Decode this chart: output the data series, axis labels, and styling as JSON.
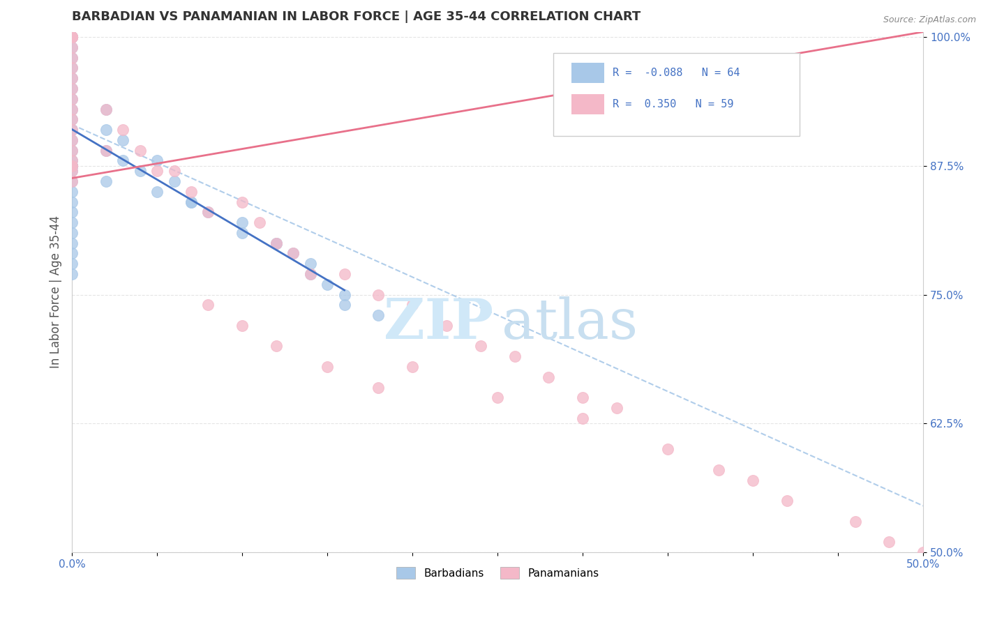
{
  "title": "BARBADIAN VS PANAMANIAN IN LABOR FORCE | AGE 35-44 CORRELATION CHART",
  "source_text": "Source: ZipAtlas.com",
  "ylabel": "In Labor Force | Age 35-44",
  "xlim": [
    0.0,
    0.5
  ],
  "ylim": [
    0.5,
    1.005
  ],
  "xticks": [
    0.0,
    0.05,
    0.1,
    0.15,
    0.2,
    0.25,
    0.3,
    0.35,
    0.4,
    0.45,
    0.5
  ],
  "xticklabels_left": "0.0%",
  "xticklabels_right": "50.0%",
  "yticks": [
    0.5,
    0.625,
    0.75,
    0.875,
    1.0
  ],
  "yticklabels": [
    "50.0%",
    "62.5%",
    "75.0%",
    "87.5%",
    "100.0%"
  ],
  "barbadian_R": -0.088,
  "barbadian_N": 64,
  "panamanian_R": 0.35,
  "panamanian_N": 59,
  "blue_scatter_color": "#a8c8e8",
  "pink_scatter_color": "#f4b8c8",
  "blue_line_color": "#4472c4",
  "pink_line_color": "#e8708a",
  "dashed_line_color": "#a8c8e8",
  "axis_label_color": "#4472c4",
  "watermark_zip_color": "#d0e8f8",
  "watermark_atlas_color": "#c8dff0",
  "legend_border_color": "#cccccc",
  "title_color": "#333333",
  "source_color": "#888888",
  "ylabel_color": "#555555",
  "grid_color": "#cccccc",
  "spine_color": "#cccccc",
  "barbadian_x": [
    0.0,
    0.0,
    0.0,
    0.0,
    0.0,
    0.0,
    0.0,
    0.0,
    0.0,
    0.0,
    0.0,
    0.0,
    0.0,
    0.0,
    0.0,
    0.0,
    0.0,
    0.0,
    0.0,
    0.0,
    0.0,
    0.0,
    0.0,
    0.0,
    0.0,
    0.0,
    0.0,
    0.0,
    0.0,
    0.0,
    0.0,
    0.0,
    0.0,
    0.0,
    0.0,
    0.0,
    0.0,
    0.0,
    0.0,
    0.0,
    0.02,
    0.02,
    0.02,
    0.03,
    0.04,
    0.05,
    0.06,
    0.07,
    0.08,
    0.1,
    0.12,
    0.13,
    0.14,
    0.15,
    0.16,
    0.18,
    0.02,
    0.03,
    0.05,
    0.07,
    0.1,
    0.12,
    0.14,
    0.16
  ],
  "barbadian_y": [
    1.0,
    1.0,
    1.0,
    1.0,
    1.0,
    1.0,
    1.0,
    1.0,
    1.0,
    1.0,
    0.99,
    0.98,
    0.97,
    0.96,
    0.95,
    0.94,
    0.93,
    0.92,
    0.91,
    0.9,
    0.89,
    0.88,
    0.87,
    0.86,
    0.85,
    0.84,
    0.83,
    0.82,
    0.81,
    0.8,
    0.79,
    0.78,
    0.77,
    0.875,
    0.875,
    0.875,
    0.875,
    0.875,
    0.875,
    0.875,
    0.91,
    0.89,
    0.86,
    0.88,
    0.87,
    0.85,
    0.86,
    0.84,
    0.83,
    0.81,
    0.8,
    0.79,
    0.77,
    0.76,
    0.75,
    0.73,
    0.93,
    0.9,
    0.88,
    0.84,
    0.82,
    0.8,
    0.78,
    0.74
  ],
  "panamanian_x": [
    0.0,
    0.0,
    0.0,
    0.0,
    0.0,
    0.0,
    0.0,
    0.0,
    0.0,
    0.0,
    0.0,
    0.0,
    0.0,
    0.0,
    0.0,
    0.0,
    0.0,
    0.0,
    0.0,
    0.0,
    0.0,
    0.0,
    0.02,
    0.02,
    0.03,
    0.04,
    0.05,
    0.06,
    0.07,
    0.08,
    0.1,
    0.11,
    0.12,
    0.13,
    0.14,
    0.16,
    0.18,
    0.2,
    0.22,
    0.24,
    0.26,
    0.28,
    0.3,
    0.32,
    0.35,
    0.38,
    0.4,
    0.42,
    0.46,
    0.48,
    0.5,
    0.2,
    0.25,
    0.3,
    0.08,
    0.1,
    0.12,
    0.15,
    0.18
  ],
  "panamanian_y": [
    1.0,
    1.0,
    1.0,
    1.0,
    1.0,
    1.0,
    0.99,
    0.98,
    0.97,
    0.96,
    0.95,
    0.94,
    0.93,
    0.92,
    0.91,
    0.9,
    0.89,
    0.88,
    0.87,
    0.86,
    0.875,
    0.875,
    0.93,
    0.89,
    0.91,
    0.89,
    0.87,
    0.87,
    0.85,
    0.83,
    0.84,
    0.82,
    0.8,
    0.79,
    0.77,
    0.77,
    0.75,
    0.74,
    0.72,
    0.7,
    0.69,
    0.67,
    0.65,
    0.64,
    0.6,
    0.58,
    0.57,
    0.55,
    0.53,
    0.51,
    0.5,
    0.68,
    0.65,
    0.63,
    0.74,
    0.72,
    0.7,
    0.68,
    0.66
  ],
  "blue_trendline_x_end": 0.16,
  "dashed_line_x0": 0.0,
  "dashed_line_y0": 0.915,
  "dashed_line_x1": 0.5,
  "dashed_line_y1": 0.545,
  "pink_trendline_x0": 0.0,
  "pink_trendline_y0": 0.863,
  "pink_trendline_x1": 0.5,
  "pink_trendline_y1": 1.005
}
